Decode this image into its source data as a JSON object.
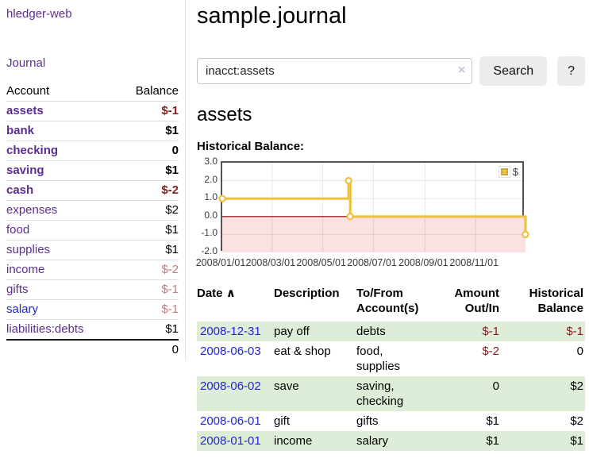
{
  "sidebar": {
    "brand": "hledger-web",
    "nav": [
      {
        "label": "Journal"
      }
    ],
    "accounts_table": {
      "headers": [
        "Account",
        "Balance"
      ],
      "rows": [
        {
          "name": "assets",
          "indent": 0,
          "bold": true,
          "balance": "$-1",
          "balance_style": "neg-strong"
        },
        {
          "name": "bank",
          "indent": 1,
          "bold": true,
          "balance": "$1",
          "balance_style": ""
        },
        {
          "name": "checking",
          "indent": 2,
          "bold": true,
          "balance": "0",
          "balance_style": ""
        },
        {
          "name": "saving",
          "indent": 2,
          "bold": true,
          "balance": "$1",
          "balance_style": ""
        },
        {
          "name": "cash",
          "indent": 1,
          "bold": true,
          "balance": "$-2",
          "balance_style": "neg-strong"
        },
        {
          "name": "expenses",
          "indent": 0,
          "bold": false,
          "balance": "$2",
          "balance_style": ""
        },
        {
          "name": "food",
          "indent": 1,
          "bold": false,
          "balance": "$1",
          "balance_style": ""
        },
        {
          "name": "supplies",
          "indent": 1,
          "bold": false,
          "balance": "$1",
          "balance_style": ""
        },
        {
          "name": "income",
          "indent": 0,
          "bold": false,
          "balance": "$-2",
          "balance_style": "neg"
        },
        {
          "name": "gifts",
          "indent": 1,
          "bold": false,
          "balance": "$-1",
          "balance_style": "neg"
        },
        {
          "name": "salary",
          "indent": 1,
          "bold": false,
          "balance": "$-1",
          "balance_style": "neg",
          "link_style": "blue"
        },
        {
          "name": "liabilities:debts",
          "indent": 0,
          "bold": false,
          "balance": "$1",
          "balance_style": ""
        }
      ],
      "total": "0"
    }
  },
  "header": {
    "title": "sample.journal"
  },
  "search": {
    "value": "inacct:assets",
    "clear_icon": "×",
    "button": "Search",
    "help_button": "?"
  },
  "account_page": {
    "heading": "assets",
    "chart_label": "Historical Balance:"
  },
  "chart_data": {
    "type": "line",
    "title": "Historical Balance",
    "series": [
      {
        "name": "$",
        "color": "#edc240",
        "step": true,
        "points": [
          [
            "2008/01/01",
            1
          ],
          [
            "2008/06/01",
            2
          ],
          [
            "2008/06/03",
            0
          ],
          [
            "2008/12/31",
            -1
          ]
        ]
      }
    ],
    "xrange": [
      "2008/01/01",
      "2008/12/31"
    ],
    "ylim": [
      -2,
      3
    ],
    "yticks": [
      3.0,
      2.0,
      1.0,
      0.0,
      -1.0,
      -2.0
    ],
    "xtick_labels": [
      "2008/01/01",
      "2008/03/01",
      "2008/05/01",
      "2008/07/01",
      "2008/09/01",
      "2008/11/01"
    ],
    "grid": true,
    "negative_region_fill": "#fbe1e1",
    "zero_line_color": "#8b0000",
    "legend": {
      "label": "$",
      "position": "top-right"
    }
  },
  "register": {
    "headers": [
      "Date",
      "Description",
      "To/From Account(s)",
      "Amount Out/In",
      "Historical Balance"
    ],
    "sort_icon": "∧",
    "rows": [
      {
        "date": "2008-12-31",
        "description": "pay off",
        "accounts": "debts",
        "amount": "$-1",
        "amount_neg": true,
        "balance": "$-1",
        "balance_neg": true
      },
      {
        "date": "2008-06-03",
        "description": "eat & shop",
        "accounts": "food, supplies",
        "amount": "$-2",
        "amount_neg": true,
        "balance": "0",
        "balance_neg": false
      },
      {
        "date": "2008-06-02",
        "description": "save",
        "accounts": "saving, checking",
        "amount": "0",
        "amount_neg": false,
        "balance": "$2",
        "balance_neg": false
      },
      {
        "date": "2008-06-01",
        "description": "gift",
        "accounts": "gifts",
        "amount": "$1",
        "amount_neg": false,
        "balance": "$2",
        "balance_neg": false
      },
      {
        "date": "2008-01-01",
        "description": "income",
        "accounts": "salary",
        "amount": "$1",
        "amount_neg": false,
        "balance": "$1",
        "balance_neg": false
      }
    ]
  },
  "colors": {
    "purple": "#5c2d91",
    "blue": "#2323d8",
    "negstrong": "#8b1a1a",
    "negsoft": "#c47c7c",
    "green": "#deedd8",
    "gold": "#edc240",
    "pinkfill": "#fbe1e1",
    "zeroline": "#8b0000"
  }
}
